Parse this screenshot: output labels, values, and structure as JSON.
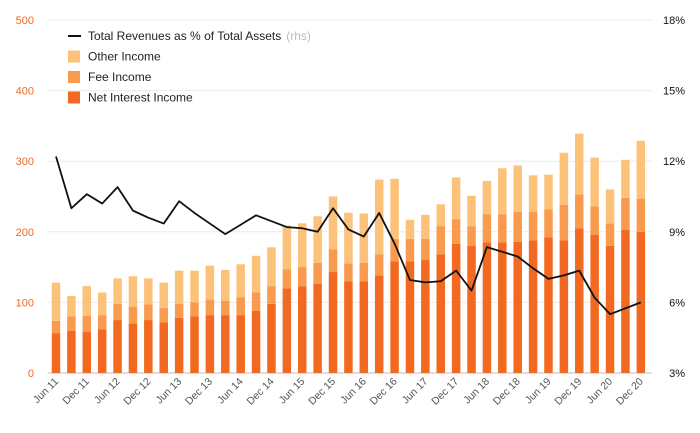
{
  "chart_data": {
    "type": "bar",
    "stacked": true,
    "categories": [
      "Jun 11",
      "Sep 11",
      "Dec 11",
      "Mar 12",
      "Jun 12",
      "Sep 12",
      "Dec 12",
      "Mar 13",
      "Jun 13",
      "Sep 13",
      "Dec 13",
      "Mar 14",
      "Jun 14",
      "Sep 14",
      "Dec 14",
      "Mar 15",
      "Jun 15",
      "Sep 15",
      "Dec 15",
      "Mar 16",
      "Jun 16",
      "Sep 16",
      "Dec 16",
      "Mar 17",
      "Jun 17",
      "Sep 17",
      "Dec 17",
      "Mar 18",
      "Jun 18",
      "Sep 18",
      "Dec 18",
      "Mar 19",
      "Jun 19",
      "Sep 19",
      "Dec 19",
      "Mar 20",
      "Jun 20",
      "Sep 20",
      "Dec 20"
    ],
    "x_tick_labels": [
      "Jun 11",
      "Dec 11",
      "Jun 12",
      "Dec 12",
      "Jun 13",
      "Dec 13",
      "Jun 14",
      "Dec 14",
      "Jun 15",
      "Dec 15",
      "Jun 16",
      "Dec 16",
      "Jun 17",
      "Dec 17",
      "Jun 18",
      "Dec 18",
      "Jun 19",
      "Dec 19",
      "Jun 20",
      "Dec 20"
    ],
    "series": [
      {
        "name": "Net Interest Income",
        "color": "#f26a21",
        "axis": "left",
        "values": [
          56,
          60,
          58,
          62,
          75,
          70,
          75,
          72,
          78,
          80,
          82,
          82,
          82,
          88,
          98,
          120,
          123,
          126,
          143,
          130,
          130,
          138,
          158,
          158,
          160,
          168,
          183,
          180,
          185,
          185,
          186,
          188,
          192,
          188,
          205,
          196,
          180,
          203,
          200
        ]
      },
      {
        "name": "Fee Income",
        "color": "#f89b4e",
        "axis": "left",
        "values": [
          18,
          20,
          23,
          20,
          23,
          24,
          22,
          20,
          20,
          20,
          22,
          20,
          25,
          26,
          25,
          27,
          27,
          30,
          32,
          25,
          26,
          30,
          32,
          32,
          30,
          40,
          35,
          28,
          40,
          40,
          42,
          40,
          40,
          50,
          48,
          40,
          32,
          45,
          47
        ]
      },
      {
        "name": "Other Income",
        "color": "#fcc27a",
        "axis": "left",
        "values": [
          54,
          29,
          42,
          32,
          36,
          43,
          37,
          36,
          47,
          45,
          48,
          44,
          47,
          52,
          55,
          62,
          62,
          66,
          75,
          72,
          70,
          106,
          85,
          27,
          34,
          31,
          59,
          43,
          47,
          65,
          66,
          52,
          49,
          74,
          86,
          69,
          48,
          54,
          82
        ]
      },
      {
        "name": "Total Revenues as % of Total Assets",
        "color": "#111111",
        "axis": "right",
        "type": "line",
        "unit": "%",
        "values": [
          12.2,
          10.0,
          10.6,
          10.2,
          10.9,
          9.9,
          9.6,
          9.35,
          10.3,
          9.8,
          9.35,
          8.9,
          9.3,
          9.7,
          9.45,
          9.2,
          9.15,
          9.0,
          10.0,
          9.1,
          8.8,
          9.8,
          8.5,
          6.95,
          6.85,
          6.9,
          7.35,
          6.5,
          8.35,
          8.15,
          7.95,
          7.45,
          7.0,
          7.15,
          7.35,
          6.2,
          5.5,
          5.75,
          6.0
        ]
      }
    ],
    "y_left": {
      "ticks": [
        "0",
        "100",
        "200",
        "300",
        "400",
        "500"
      ],
      "ylim": [
        0,
        500
      ],
      "color": "#f26a21"
    },
    "y_right": {
      "ticks": [
        "3%",
        "6%",
        "9%",
        "12%",
        "15%",
        "18%"
      ],
      "ylim": [
        3,
        18
      ],
      "color": "#111111"
    },
    "legend": {
      "position": "top-left",
      "items": [
        {
          "label": "Total Revenues as % of Total Assets",
          "note": "(rhs)",
          "marker": "line",
          "color": "#111111"
        },
        {
          "label": "Other Income",
          "marker": "square",
          "color": "#fcc27a"
        },
        {
          "label": "Fee Income",
          "marker": "square",
          "color": "#f89b4e"
        },
        {
          "label": "Net Interest Income",
          "marker": "square",
          "color": "#f26a21"
        }
      ]
    },
    "grid": true,
    "title": "",
    "xlabel": "",
    "ylabel": ""
  }
}
